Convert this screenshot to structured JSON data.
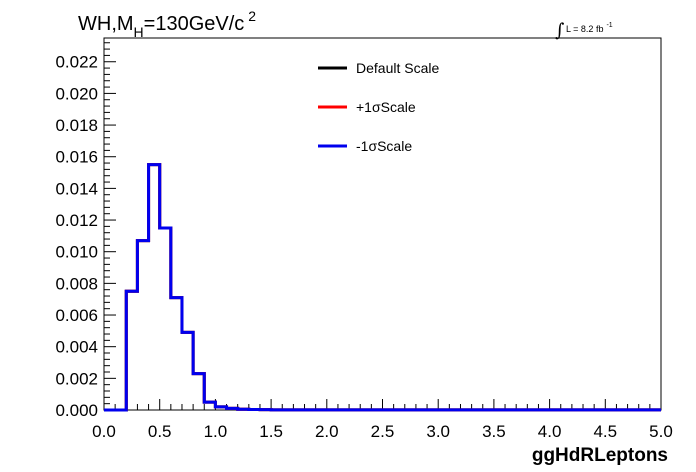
{
  "chart_data": {
    "type": "step-histogram",
    "title_main": "WH,M",
    "title_sub": "H",
    "title_rest": "=130GeV/c",
    "title_sup": "2",
    "lumi_label": "L = 8.2 fb",
    "lumi_sup": "-1",
    "xlabel": "ggHdRLeptons",
    "ylabel": "",
    "xlim": [
      0,
      5
    ],
    "ylim": [
      0,
      0.0235
    ],
    "x_ticks": [
      "0.0",
      "0.5",
      "1.0",
      "1.5",
      "2.0",
      "2.5",
      "3.0",
      "3.5",
      "4.0",
      "4.5",
      "5.0"
    ],
    "y_ticks": [
      "0.000",
      "0.002",
      "0.004",
      "0.006",
      "0.008",
      "0.010",
      "0.012",
      "0.014",
      "0.016",
      "0.018",
      "0.020",
      "0.022"
    ],
    "bin_edges": [
      0.0,
      0.1,
      0.2,
      0.3,
      0.4,
      0.5,
      0.6,
      0.7,
      0.8,
      0.9,
      1.0,
      1.1,
      1.2,
      1.3,
      1.4,
      1.5,
      5.0
    ],
    "series": [
      {
        "name": "Default Scale",
        "color": "#000000",
        "values": [
          0,
          0,
          0.0075,
          0.0107,
          0.0155,
          0.0115,
          0.0071,
          0.0049,
          0.0023,
          0.0005,
          0.0002,
          0.0001,
          5e-05,
          3e-05,
          2e-05,
          1e-05
        ]
      },
      {
        "name": "+1σScale",
        "color": "#ff0000",
        "values": [
          0,
          0,
          0.0075,
          0.0107,
          0.0155,
          0.0115,
          0.0071,
          0.0049,
          0.0023,
          0.0005,
          0.0002,
          0.0001,
          5e-05,
          3e-05,
          2e-05,
          1e-05
        ]
      },
      {
        "name": "-1σScale",
        "color": "#0000ee",
        "values": [
          0,
          0,
          0.0075,
          0.0107,
          0.0155,
          0.0115,
          0.0071,
          0.0049,
          0.0023,
          0.0005,
          0.0002,
          0.0001,
          5e-05,
          3e-05,
          2e-05,
          1e-05
        ]
      }
    ],
    "legend_position": "top-center"
  }
}
